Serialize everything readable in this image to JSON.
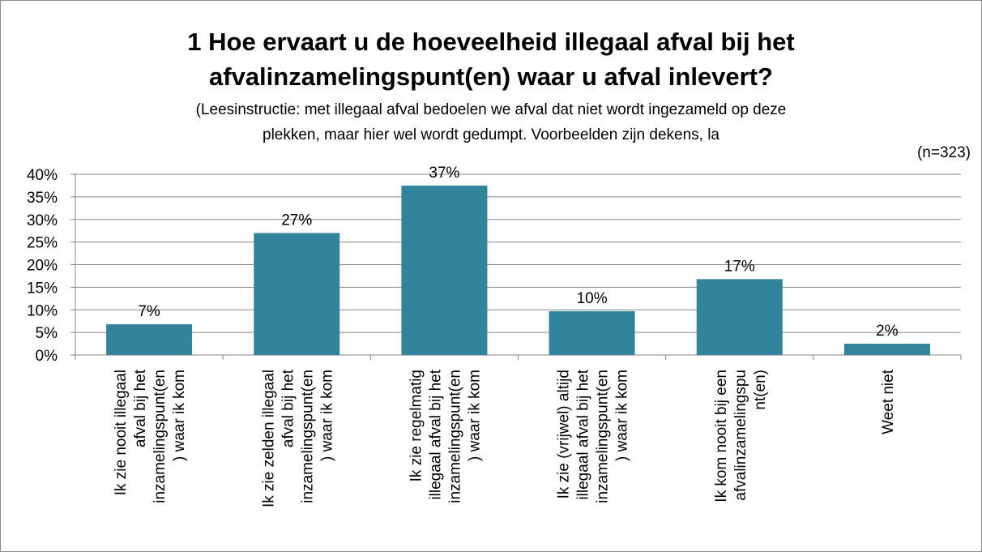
{
  "chart_data": {
    "type": "bar",
    "title": "1 Hoe ervaart u de hoeveelheid illegaal afval bij het afvalinzamelingspunt(en) waar u afval inlevert?",
    "title_lines": [
      "1 Hoe ervaart u de hoeveelheid illegaal afval bij het",
      "afvalinzamelingspunt(en) waar u afval inlevert?"
    ],
    "subtitle_lines": [
      "(Leesinstructie: met illegaal afval bedoelen we afval dat niet wordt ingezameld op deze",
      "plekken, maar hier wel wordt gedumpt. Voorbeelden zijn dekens, la"
    ],
    "note": "(n=323)",
    "categories": [
      "Ik zie nooit illegaal afval bij het inzamelingspunt(en) waar ik kom",
      "Ik zie zelden illegaal afval bij het inzamelingspunt(en) waar ik kom",
      "Ik zie regelmatig illegaal afval bij het inzamelingspunt(en) waar ik kom",
      "Ik zie (vrijwel) altijd illegaal afval bij het inzamelingspunt(en) waar ik kom",
      "Ik kom nooit bij een afvalinzamelingspunt(en)",
      "Weet niet"
    ],
    "category_lines": [
      [
        "Ik zie nooit illegaal",
        "afval bij het",
        "inzamelingspunt(en",
        ") waar ik kom"
      ],
      [
        "Ik zie zelden illegaal",
        "afval bij het",
        "inzamelingspunt(en",
        ") waar ik kom"
      ],
      [
        "Ik zie regelmatig",
        "illegaal afval bij het",
        "inzamelingspunt(en",
        ") waar ik kom"
      ],
      [
        "Ik zie (vrijwel) altijd",
        "illegaal afval bij het",
        "inzamelingspunt(en",
        ") waar ik kom"
      ],
      [
        "Ik kom nooit bij een",
        "afvalinzamelingspu",
        "nt(en)"
      ],
      [
        "Weet niet"
      ]
    ],
    "values": [
      7,
      27,
      37,
      10,
      17,
      2
    ],
    "bar_heights_pct": [
      6.8,
      27.0,
      37.5,
      9.7,
      16.8,
      2.5
    ],
    "value_labels": [
      "7%",
      "27%",
      "37%",
      "10%",
      "17%",
      "2%"
    ],
    "y_ticks": [
      "0%",
      "5%",
      "10%",
      "15%",
      "20%",
      "25%",
      "30%",
      "35%",
      "40%"
    ],
    "ylim": [
      0,
      40
    ],
    "grid": true,
    "colors": {
      "bar": "#31849b",
      "grid": "#868686",
      "axis": "#868686"
    }
  }
}
